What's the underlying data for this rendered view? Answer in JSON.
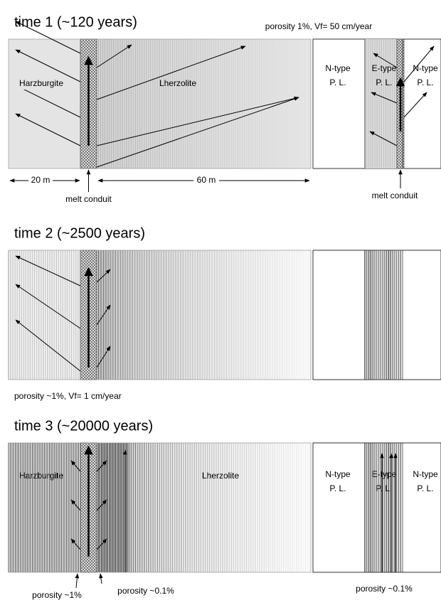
{
  "panels": [
    {
      "title": "time 1 (~120 years)",
      "note": "porosity 1%, Vf= 50 cm/year",
      "left_rock": "Harzburgite",
      "right_rock": "Lherzolite",
      "zones": [
        {
          "name": "N-type",
          "sub": "P. L."
        },
        {
          "name": "E-type",
          "sub": "P. L."
        },
        {
          "name": "N-type",
          "sub": "P. L."
        }
      ],
      "scale": [
        "20 m",
        "60 m"
      ],
      "conduit_labels": [
        "melt conduit",
        "melt conduit"
      ]
    },
    {
      "title": "time 2 (~2500 years)",
      "note": "porosity ~1%, Vf= 1 cm/year"
    },
    {
      "title": "time 3 (~20000 years)",
      "left_rock": "Harzburgite",
      "right_rock": "Lherzolite",
      "zones": [
        {
          "name": "N-type",
          "sub": "P. L."
        },
        {
          "name": "E-type",
          "sub": "P. L."
        },
        {
          "name": "N-type",
          "sub": "P. L."
        }
      ],
      "porosity_labels": [
        "porosity ~1%",
        "porosity ~0.1%",
        "porosity ~0.1%"
      ]
    }
  ]
}
